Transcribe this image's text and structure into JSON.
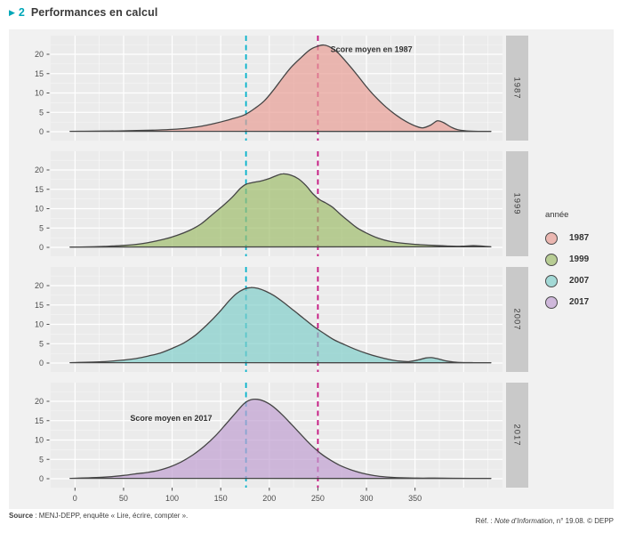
{
  "header": {
    "marker": "▶",
    "number": "2",
    "title": "Performances en calcul"
  },
  "chart_data": {
    "type": "area",
    "title": "Performances en calcul",
    "x_ticks": [
      0,
      50,
      100,
      150,
      200,
      250,
      300,
      350
    ],
    "x_domain": [
      -25,
      440
    ],
    "y_ticks": [
      0,
      5,
      10,
      15,
      20
    ],
    "y_max": 24.8,
    "legend_title": "année",
    "facet_labels": [
      "1987",
      "1999",
      "2007",
      "2017"
    ],
    "series": [
      {
        "name": "1987",
        "color": "#e89e96",
        "points": [
          [
            -5,
            0.1
          ],
          [
            10,
            0.12
          ],
          [
            30,
            0.15
          ],
          [
            55,
            0.25
          ],
          [
            80,
            0.4
          ],
          [
            100,
            0.6
          ],
          [
            115,
            0.9
          ],
          [
            130,
            1.4
          ],
          [
            145,
            2.2
          ],
          [
            160,
            3.2
          ],
          [
            174,
            4.3
          ],
          [
            185,
            6
          ],
          [
            195,
            8
          ],
          [
            205,
            11
          ],
          [
            214,
            14
          ],
          [
            222,
            16.5
          ],
          [
            232,
            19
          ],
          [
            242,
            21.2
          ],
          [
            250,
            22.1
          ],
          [
            256,
            22.4
          ],
          [
            263,
            21.8
          ],
          [
            271,
            20.3
          ],
          [
            280,
            17.8
          ],
          [
            290,
            14.8
          ],
          [
            300,
            11.6
          ],
          [
            310,
            8.8
          ],
          [
            320,
            6.4
          ],
          [
            331,
            4.2
          ],
          [
            341,
            2.6
          ],
          [
            351,
            1.4
          ],
          [
            358,
            1
          ],
          [
            366,
            1.7
          ],
          [
            373,
            2.8
          ],
          [
            379,
            2.4
          ],
          [
            387,
            1.2
          ],
          [
            394,
            0.5
          ],
          [
            403,
            0.2
          ],
          [
            415,
            0.1
          ],
          [
            428,
            0.08
          ]
        ]
      },
      {
        "name": "1999",
        "color": "#9fbd6c",
        "points": [
          [
            -5,
            0.08
          ],
          [
            10,
            0.12
          ],
          [
            30,
            0.25
          ],
          [
            50,
            0.5
          ],
          [
            70,
            1
          ],
          [
            90,
            2
          ],
          [
            105,
            3.1
          ],
          [
            118,
            4.4
          ],
          [
            130,
            6.1
          ],
          [
            142,
            8.6
          ],
          [
            152,
            10.7
          ],
          [
            162,
            13
          ],
          [
            170,
            15.2
          ],
          [
            176,
            16.3
          ],
          [
            184,
            16.8
          ],
          [
            192,
            17.2
          ],
          [
            200,
            17.8
          ],
          [
            208,
            18.6
          ],
          [
            214,
            19
          ],
          [
            222,
            18.7
          ],
          [
            230,
            17.7
          ],
          [
            238,
            15.9
          ],
          [
            245,
            13.8
          ],
          [
            252,
            12.3
          ],
          [
            258,
            11.5
          ],
          [
            265,
            10.4
          ],
          [
            272,
            8.8
          ],
          [
            281,
            6.9
          ],
          [
            290,
            5.1
          ],
          [
            300,
            3.7
          ],
          [
            312,
            2.4
          ],
          [
            325,
            1.5
          ],
          [
            340,
            1
          ],
          [
            355,
            0.7
          ],
          [
            370,
            0.5
          ],
          [
            385,
            0.35
          ],
          [
            398,
            0.3
          ],
          [
            410,
            0.45
          ],
          [
            420,
            0.3
          ],
          [
            428,
            0.15
          ]
        ]
      },
      {
        "name": "2007",
        "color": "#82cfca",
        "points": [
          [
            -5,
            0.1
          ],
          [
            10,
            0.2
          ],
          [
            25,
            0.3
          ],
          [
            40,
            0.55
          ],
          [
            60,
            1.05
          ],
          [
            75,
            1.8
          ],
          [
            88,
            2.6
          ],
          [
            100,
            3.8
          ],
          [
            112,
            5.2
          ],
          [
            124,
            7.2
          ],
          [
            136,
            9.9
          ],
          [
            148,
            13
          ],
          [
            158,
            15.9
          ],
          [
            166,
            17.9
          ],
          [
            174,
            19.1
          ],
          [
            181,
            19.5
          ],
          [
            188,
            19.3
          ],
          [
            196,
            18.6
          ],
          [
            205,
            17.4
          ],
          [
            215,
            15.6
          ],
          [
            225,
            13.6
          ],
          [
            235,
            11.6
          ],
          [
            246,
            9.4
          ],
          [
            256,
            7.7
          ],
          [
            266,
            6.1
          ],
          [
            277,
            4.8
          ],
          [
            288,
            3.6
          ],
          [
            300,
            2.5
          ],
          [
            312,
            1.6
          ],
          [
            324,
            0.9
          ],
          [
            334,
            0.5
          ],
          [
            344,
            0.4
          ],
          [
            353,
            0.8
          ],
          [
            361,
            1.3
          ],
          [
            367,
            1.4
          ],
          [
            375,
            1
          ],
          [
            383,
            0.5
          ],
          [
            393,
            0.2
          ],
          [
            410,
            0.1
          ],
          [
            428,
            0.08
          ]
        ]
      },
      {
        "name": "2017",
        "color": "#c09fd1",
        "points": [
          [
            -5,
            0.1
          ],
          [
            8,
            0.18
          ],
          [
            22,
            0.3
          ],
          [
            36,
            0.5
          ],
          [
            50,
            0.85
          ],
          [
            62,
            1.25
          ],
          [
            74,
            1.6
          ],
          [
            85,
            2.1
          ],
          [
            97,
            3
          ],
          [
            109,
            4.3
          ],
          [
            121,
            6.1
          ],
          [
            133,
            8.4
          ],
          [
            145,
            11.2
          ],
          [
            156,
            14.3
          ],
          [
            166,
            17.2
          ],
          [
            174,
            19.4
          ],
          [
            181,
            20.4
          ],
          [
            188,
            20.5
          ],
          [
            195,
            20
          ],
          [
            203,
            18.8
          ],
          [
            213,
            16.6
          ],
          [
            223,
            14
          ],
          [
            233,
            11.3
          ],
          [
            243,
            8.7
          ],
          [
            253,
            6.5
          ],
          [
            263,
            4.8
          ],
          [
            273,
            3.4
          ],
          [
            284,
            2.3
          ],
          [
            296,
            1.4
          ],
          [
            308,
            0.8
          ],
          [
            320,
            0.45
          ],
          [
            335,
            0.25
          ],
          [
            352,
            0.15
          ],
          [
            370,
            0.15
          ],
          [
            390,
            0.12
          ],
          [
            408,
            0.1
          ],
          [
            428,
            0.08
          ]
        ]
      }
    ],
    "mean_lines": [
      {
        "x": 250,
        "color": "#c4117e",
        "label": "Score moyen en 1987",
        "label_facet": 0,
        "label_x": 263,
        "label_y": 20.6,
        "label_anchor": "start"
      },
      {
        "x": 176,
        "color": "#00b0c9",
        "label": "Score moyen en 2017",
        "label_facet": 3,
        "label_x": 99,
        "label_y": 15,
        "label_anchor": "middle"
      }
    ],
    "colors": {
      "panel_bg": "#ebebeb",
      "card_bg": "#f1f1f1",
      "strip_bg": "#c9c9c9",
      "grid": "#ffffff",
      "axis_text": "#4d4d4d",
      "outline": "#454545",
      "annotation": "#333333",
      "fill_alpha": 0.7
    }
  },
  "legend": {
    "title": "année"
  },
  "footer": {
    "source_label": "Source",
    "source_rest": " : MENJ-DEPP, enquête « Lire, écrire, compter ».",
    "ref_prefix": "Réf. : ",
    "ref_italic": "Note d’Information",
    "ref_suffix": ", n° 19.08. © DEPP"
  }
}
